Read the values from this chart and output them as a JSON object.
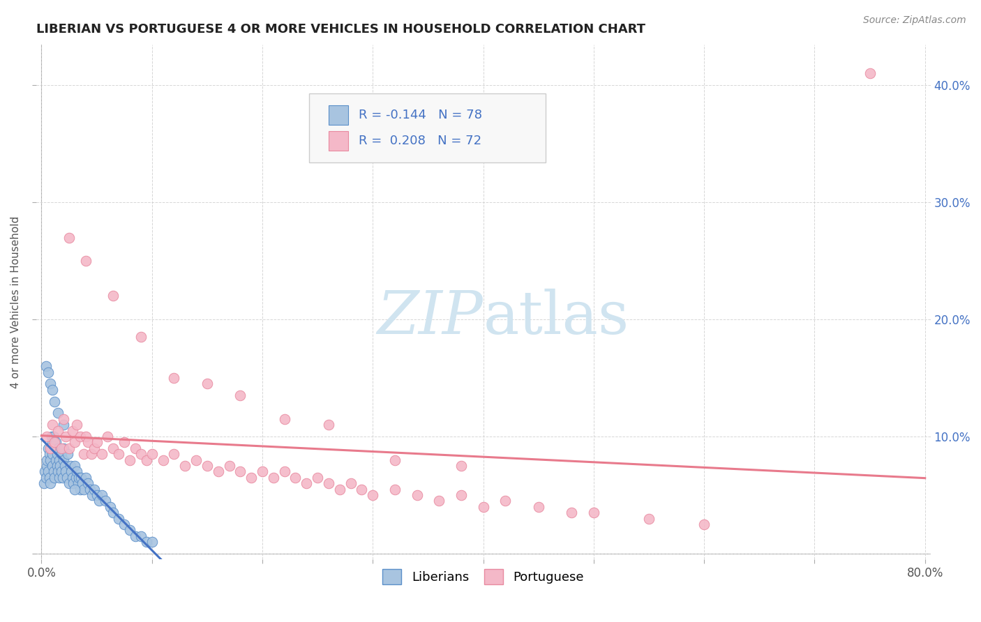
{
  "title": "LIBERIAN VS PORTUGUESE 4 OR MORE VEHICLES IN HOUSEHOLD CORRELATION CHART",
  "source_text": "Source: ZipAtlas.com",
  "ylabel": "4 or more Vehicles in Household",
  "legend_label1": "Liberians",
  "legend_label2": "Portuguese",
  "r1": -0.144,
  "n1": 78,
  "r2": 0.208,
  "n2": 72,
  "xlim": [
    -0.005,
    0.805
  ],
  "ylim": [
    -0.005,
    0.435
  ],
  "xticks": [
    0.0,
    0.1,
    0.2,
    0.3,
    0.4,
    0.5,
    0.6,
    0.7,
    0.8
  ],
  "yticks": [
    0.0,
    0.1,
    0.2,
    0.3,
    0.4
  ],
  "xtick_labels": [
    "0.0%",
    "",
    "",
    "",
    "",
    "",
    "",
    "",
    "80.0%"
  ],
  "ytick_labels_right": [
    "",
    "10.0%",
    "20.0%",
    "30.0%",
    "40.0%"
  ],
  "color_liberian": "#a8c4e0",
  "color_portuguese": "#f4b8c8",
  "edge_liberian": "#5b8fc9",
  "edge_portuguese": "#e88aa0",
  "line_color_liberian": "#4472c4",
  "line_color_portuguese": "#e87a8c",
  "watermark_color": "#d0e4f0",
  "background_color": "#ffffff",
  "lib_x": [
    0.002,
    0.003,
    0.004,
    0.005,
    0.005,
    0.006,
    0.006,
    0.007,
    0.007,
    0.008,
    0.008,
    0.009,
    0.009,
    0.01,
    0.01,
    0.01,
    0.011,
    0.011,
    0.012,
    0.012,
    0.013,
    0.013,
    0.014,
    0.014,
    0.015,
    0.015,
    0.016,
    0.016,
    0.017,
    0.018,
    0.018,
    0.019,
    0.02,
    0.02,
    0.021,
    0.022,
    0.023,
    0.024,
    0.025,
    0.026,
    0.027,
    0.028,
    0.029,
    0.03,
    0.031,
    0.032,
    0.033,
    0.034,
    0.035,
    0.036,
    0.037,
    0.038,
    0.04,
    0.042,
    0.044,
    0.046,
    0.048,
    0.05,
    0.052,
    0.055,
    0.058,
    0.062,
    0.065,
    0.07,
    0.075,
    0.08,
    0.085,
    0.09,
    0.095,
    0.1,
    0.004,
    0.006,
    0.008,
    0.01,
    0.012,
    0.015,
    0.02,
    0.03
  ],
  "lib_y": [
    0.06,
    0.07,
    0.065,
    0.075,
    0.08,
    0.07,
    0.09,
    0.065,
    0.085,
    0.06,
    0.08,
    0.09,
    0.1,
    0.075,
    0.085,
    0.095,
    0.07,
    0.1,
    0.065,
    0.09,
    0.08,
    0.095,
    0.075,
    0.085,
    0.07,
    0.09,
    0.065,
    0.08,
    0.075,
    0.07,
    0.085,
    0.065,
    0.08,
    0.09,
    0.075,
    0.07,
    0.065,
    0.085,
    0.06,
    0.075,
    0.07,
    0.065,
    0.06,
    0.075,
    0.065,
    0.07,
    0.06,
    0.065,
    0.055,
    0.065,
    0.06,
    0.055,
    0.065,
    0.06,
    0.055,
    0.05,
    0.055,
    0.05,
    0.045,
    0.05,
    0.045,
    0.04,
    0.035,
    0.03,
    0.025,
    0.02,
    0.015,
    0.015,
    0.01,
    0.01,
    0.16,
    0.155,
    0.145,
    0.14,
    0.13,
    0.12,
    0.11,
    0.055
  ],
  "port_x": [
    0.005,
    0.008,
    0.01,
    0.012,
    0.015,
    0.018,
    0.02,
    0.022,
    0.025,
    0.028,
    0.03,
    0.032,
    0.035,
    0.038,
    0.04,
    0.042,
    0.045,
    0.048,
    0.05,
    0.055,
    0.06,
    0.065,
    0.07,
    0.075,
    0.08,
    0.085,
    0.09,
    0.095,
    0.1,
    0.11,
    0.12,
    0.13,
    0.14,
    0.15,
    0.16,
    0.17,
    0.18,
    0.19,
    0.2,
    0.21,
    0.22,
    0.23,
    0.24,
    0.25,
    0.26,
    0.27,
    0.28,
    0.29,
    0.3,
    0.32,
    0.34,
    0.36,
    0.38,
    0.4,
    0.42,
    0.45,
    0.48,
    0.5,
    0.55,
    0.6,
    0.025,
    0.04,
    0.065,
    0.09,
    0.12,
    0.15,
    0.18,
    0.22,
    0.26,
    0.32,
    0.38,
    0.75
  ],
  "port_y": [
    0.1,
    0.09,
    0.11,
    0.095,
    0.105,
    0.09,
    0.115,
    0.1,
    0.09,
    0.105,
    0.095,
    0.11,
    0.1,
    0.085,
    0.1,
    0.095,
    0.085,
    0.09,
    0.095,
    0.085,
    0.1,
    0.09,
    0.085,
    0.095,
    0.08,
    0.09,
    0.085,
    0.08,
    0.085,
    0.08,
    0.085,
    0.075,
    0.08,
    0.075,
    0.07,
    0.075,
    0.07,
    0.065,
    0.07,
    0.065,
    0.07,
    0.065,
    0.06,
    0.065,
    0.06,
    0.055,
    0.06,
    0.055,
    0.05,
    0.055,
    0.05,
    0.045,
    0.05,
    0.04,
    0.045,
    0.04,
    0.035,
    0.035,
    0.03,
    0.025,
    0.27,
    0.25,
    0.22,
    0.185,
    0.15,
    0.145,
    0.135,
    0.115,
    0.11,
    0.08,
    0.075,
    0.41
  ]
}
